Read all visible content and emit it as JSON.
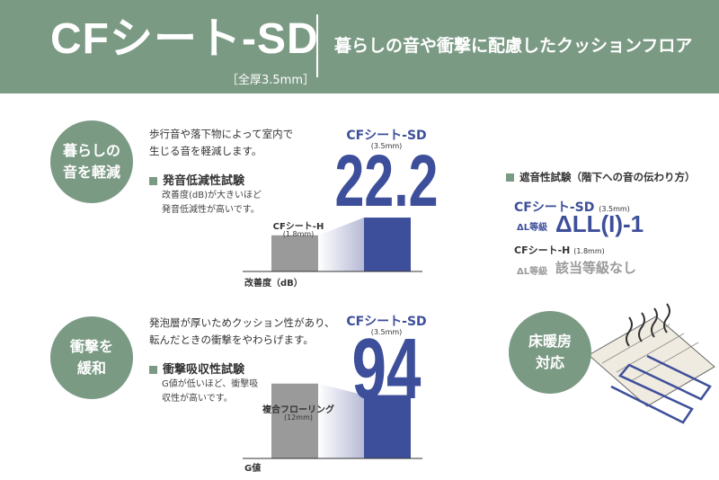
{
  "header": {
    "product": "CFシート-SD",
    "thickness": "［全厚3.5mm］",
    "tagline": "暮らしの音や衝撃に配慮したクッションフロア"
  },
  "section1": {
    "badge": [
      "暮らしの",
      "音を軽減"
    ],
    "desc": [
      "歩行音や落下物によって室内で",
      "生じる音を軽減します。"
    ],
    "heading": "発音低減性試験",
    "sub": [
      "改善度(dB)が大きいほど",
      "発音低減性が高いです。"
    ],
    "main_label": "CFシート-SD",
    "main_thickness": "(3.5mm)",
    "compare_label": "CFシート-H",
    "compare_thickness": "(1.8mm)",
    "axis_label": "改善度（dB）"
  },
  "section2": {
    "badge": [
      "衝撃を",
      "緩和"
    ],
    "desc": [
      "発泡層が厚いためクッション性があり、",
      "転んだときの衝撃をやわらげます。"
    ],
    "heading": "衝撃吸収性試験",
    "sub": [
      "G値が低いほど、衝撃吸",
      "収性が高いです。"
    ],
    "main_label": "CFシート-SD",
    "main_thickness": "(3.5mm)",
    "compare_label": "複合フローリング",
    "compare_thickness": "(12mm)",
    "axis_label": "G値"
  },
  "right": {
    "title": "遮音性試験（階下への音の伝わり方）",
    "prod1": "CFシート-SD",
    "prod1_thickness": "(3.5mm)",
    "grade_label": "ΔL等級",
    "grade1": "ΔLL(I)-1",
    "prod2": "CFシート-H",
    "prod2_thickness": "(1.8mm)",
    "grade2": "該当等級なし",
    "badge3": [
      "床暖房",
      "対応"
    ]
  },
  "chart_data": [
    {
      "type": "bar",
      "categories": [
        "CFシート-H (1.8mm)",
        "CFシート-SD (3.5mm)"
      ],
      "values": [
        14.9,
        22.2
      ],
      "xlabel": "改善度（dB）"
    },
    {
      "type": "bar",
      "categories": [
        "複合フローリング (12mm)",
        "CFシート-SD (3.5mm)"
      ],
      "values": [
        111,
        94
      ],
      "xlabel": "G値"
    }
  ],
  "colors": {
    "green": "#7b9a84",
    "blue": "#3d4f9a",
    "gray": "#9a9a9a"
  }
}
